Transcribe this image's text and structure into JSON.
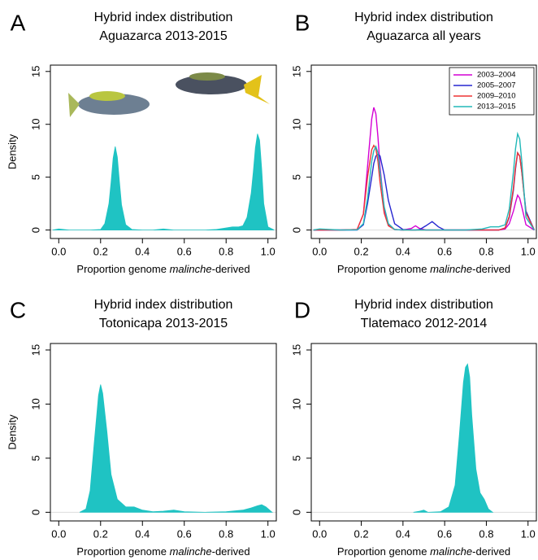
{
  "chart_data": [
    {
      "type": "area",
      "panel": "A",
      "title": "Hybrid index distribution",
      "subtitle": "Aguazarca 2013-2015",
      "x_label": [
        "Proportion genome ",
        "malinche",
        "-derived"
      ],
      "y_label": "Density",
      "color": "#1fc3c3",
      "x": [
        -0.03,
        0,
        0.05,
        0.1,
        0.15,
        0.2,
        0.22,
        0.24,
        0.25,
        0.26,
        0.27,
        0.28,
        0.29,
        0.3,
        0.32,
        0.35,
        0.4,
        0.45,
        0.5,
        0.55,
        0.6,
        0.7,
        0.75,
        0.8,
        0.83,
        0.86,
        0.88,
        0.9,
        0.92,
        0.93,
        0.94,
        0.95,
        0.96,
        0.97,
        0.98,
        1.0,
        1.03
      ],
      "values": [
        0,
        0.1,
        0,
        0,
        0,
        0.05,
        0.6,
        2.5,
        4.5,
        6.8,
        7.9,
        6.9,
        4.6,
        2.4,
        0.5,
        0.05,
        0,
        0,
        0.1,
        0,
        0,
        0,
        0.05,
        0.2,
        0.3,
        0.3,
        0.4,
        1.2,
        3.5,
        5.5,
        7.8,
        9.1,
        8.5,
        5.8,
        2.5,
        0.3,
        0
      ],
      "xlim": [
        -0.04,
        1.04
      ],
      "ylim": [
        -0.8,
        15.6
      ],
      "xticks": [
        {
          "value": 0,
          "label": "0.0"
        },
        {
          "value": 0.2,
          "label": "0.2"
        },
        {
          "value": 0.4,
          "label": "0.4"
        },
        {
          "value": 0.6,
          "label": "0.6"
        },
        {
          "value": 0.8,
          "label": "0.8"
        },
        {
          "value": 1,
          "label": "1.0"
        }
      ],
      "yticks": [
        0,
        5,
        10,
        15
      ]
    },
    {
      "type": "line",
      "panel": "B",
      "title": "Hybrid index distribution",
      "subtitle": "Aguazarca all years",
      "x_label": [
        "Proportion genome ",
        "malinche",
        "-derived"
      ],
      "legend": "top-right",
      "x": [
        -0.03,
        0,
        0.1,
        0.18,
        0.21,
        0.23,
        0.25,
        0.26,
        0.27,
        0.28,
        0.29,
        0.31,
        0.33,
        0.36,
        0.4,
        0.44,
        0.46,
        0.48,
        0.51,
        0.54,
        0.57,
        0.6,
        0.7,
        0.78,
        0.82,
        0.86,
        0.89,
        0.91,
        0.93,
        0.94,
        0.95,
        0.96,
        0.97,
        0.99,
        1.03
      ],
      "series": [
        {
          "name": "2003–2004",
          "color": "#d400d4",
          "values": [
            0,
            0,
            0,
            0.05,
            1.5,
            6,
            10.5,
            11.6,
            11,
            8.8,
            6,
            2,
            0.5,
            0.05,
            0,
            0.15,
            0.4,
            0.15,
            0,
            0,
            0,
            0,
            0,
            0,
            0,
            0,
            0.1,
            0.6,
            1.8,
            2.6,
            3.3,
            3,
            2.2,
            0.5,
            0
          ]
        },
        {
          "name": "2005–2007",
          "color": "#2626d0",
          "values": [
            0,
            0,
            0,
            0,
            0.5,
            2.5,
            5,
            6.3,
            7,
            7.2,
            7,
            5.2,
            2.8,
            0.6,
            0.05,
            0,
            0,
            0.05,
            0.4,
            0.8,
            0.3,
            0,
            0,
            0,
            0,
            0,
            0.2,
            1.2,
            3.8,
            5.8,
            7.3,
            7,
            5.5,
            1.8,
            0
          ]
        },
        {
          "name": "2009–2010",
          "color": "#ee3333",
          "values": [
            0,
            0,
            0,
            0.05,
            1.5,
            5,
            7.6,
            8,
            7.7,
            6.5,
            4.5,
            1.6,
            0.4,
            0.05,
            0,
            0,
            0,
            0,
            0,
            0,
            0,
            0,
            0,
            0,
            0,
            0,
            0.2,
            1.3,
            4,
            6,
            7.3,
            7,
            5.5,
            1.6,
            0
          ]
        },
        {
          "name": "2013–2015",
          "color": "#22b8b8",
          "values": [
            0,
            0.1,
            0,
            0.02,
            0.6,
            3,
            6.5,
            7.5,
            7.9,
            7.3,
            5.5,
            2.2,
            0.6,
            0.05,
            0,
            0,
            0,
            0,
            0,
            0,
            0,
            0,
            0,
            0.1,
            0.3,
            0.3,
            0.5,
            2,
            5.5,
            7.7,
            9.1,
            8.6,
            6.5,
            1.2,
            0
          ]
        }
      ],
      "xlim": [
        -0.04,
        1.04
      ],
      "ylim": [
        -0.8,
        15.6
      ],
      "xticks": [
        {
          "value": 0,
          "label": "0.0"
        },
        {
          "value": 0.2,
          "label": "0.2"
        },
        {
          "value": 0.4,
          "label": "0.4"
        },
        {
          "value": 0.6,
          "label": "0.6"
        },
        {
          "value": 0.8,
          "label": "0.8"
        },
        {
          "value": 1,
          "label": "1.0"
        }
      ],
      "yticks": [
        0,
        5,
        10,
        15
      ]
    },
    {
      "type": "area",
      "panel": "C",
      "title": "Hybrid index distribution",
      "subtitle": "Totonicapa 2013-2015",
      "x_label": [
        "Proportion genome ",
        "malinche",
        "-derived"
      ],
      "y_label": "Density",
      "color": "#1fc3c3",
      "x": [
        0.1,
        0.13,
        0.15,
        0.17,
        0.19,
        0.2,
        0.21,
        0.23,
        0.25,
        0.28,
        0.32,
        0.36,
        0.4,
        0.45,
        0.5,
        0.55,
        0.6,
        0.7,
        0.8,
        0.88,
        0.92,
        0.95,
        0.97,
        0.99,
        1.02
      ],
      "values": [
        0,
        0.3,
        2,
        6.5,
        10.8,
        11.8,
        11,
        7.5,
        3.5,
        1.2,
        0.5,
        0.5,
        0.2,
        0.05,
        0.1,
        0.2,
        0.05,
        0,
        0.05,
        0.2,
        0.4,
        0.6,
        0.7,
        0.5,
        0
      ],
      "xlim": [
        -0.04,
        1.04
      ],
      "ylim": [
        -0.8,
        15.6
      ],
      "xticks": [
        {
          "value": 0,
          "label": "0.0"
        },
        {
          "value": 0.2,
          "label": "0.2"
        },
        {
          "value": 0.4,
          "label": "0.4"
        },
        {
          "value": 0.6,
          "label": "0.6"
        },
        {
          "value": 0.8,
          "label": "0.8"
        },
        {
          "value": 1,
          "label": "1.0"
        }
      ],
      "yticks": [
        0,
        5,
        10,
        15
      ]
    },
    {
      "type": "area",
      "panel": "D",
      "title": "Hybrid index distribution",
      "subtitle": "Tlatemaco 2012-2014",
      "x_label": [
        "Proportion genome ",
        "malinche",
        "-derived"
      ],
      "color": "#1fc3c3",
      "x": [
        0.45,
        0.48,
        0.5,
        0.52,
        0.58,
        0.62,
        0.65,
        0.67,
        0.69,
        0.7,
        0.71,
        0.72,
        0.73,
        0.75,
        0.77,
        0.79,
        0.81,
        0.83
      ],
      "values": [
        0,
        0.1,
        0.2,
        0,
        0.05,
        0.5,
        2.5,
        7,
        12,
        13.4,
        13.7,
        12.5,
        9,
        4,
        1.8,
        1.2,
        0.3,
        0
      ],
      "xlim": [
        -0.04,
        1.04
      ],
      "ylim": [
        -0.8,
        15.6
      ],
      "xticks": [
        {
          "value": 0,
          "label": "0.0"
        },
        {
          "value": 0.2,
          "label": "0.2"
        },
        {
          "value": 0.4,
          "label": "0.4"
        },
        {
          "value": 0.6,
          "label": "0.6"
        },
        {
          "value": 0.8,
          "label": "0.8"
        },
        {
          "value": 1,
          "label": "1.0"
        }
      ],
      "yticks": [
        0,
        5,
        10,
        15
      ]
    }
  ]
}
